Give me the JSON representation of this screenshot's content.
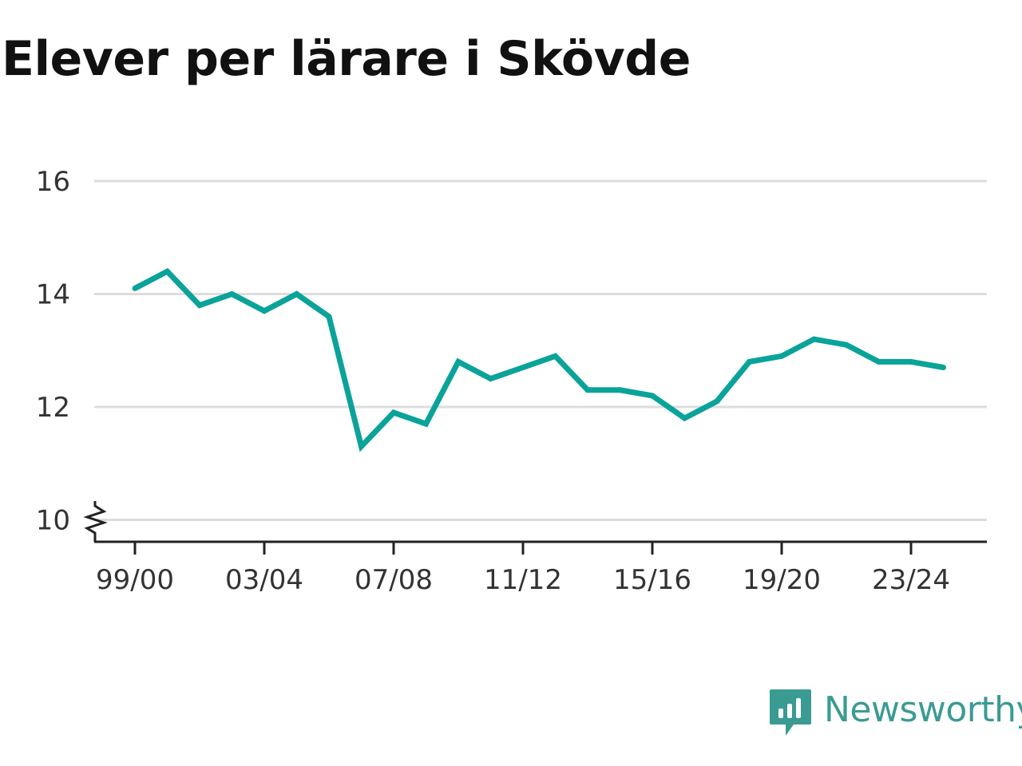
{
  "chart_data": {
    "type": "line",
    "title": "Elever per lärare i Skövde",
    "xlabel": "",
    "ylabel": "",
    "categories": [
      "99/00",
      "00/01",
      "01/02",
      "02/03",
      "03/04",
      "04/05",
      "05/06",
      "06/07",
      "07/08",
      "08/09",
      "09/10",
      "10/11",
      "11/12",
      "12/13",
      "13/14",
      "14/15",
      "15/16",
      "16/17",
      "17/18",
      "18/19",
      "19/20",
      "20/21",
      "21/22",
      "22/23",
      "23/24",
      "24/25"
    ],
    "series": [
      {
        "values": [
          14.1,
          14.4,
          13.8,
          14.0,
          13.7,
          14.0,
          13.6,
          11.3,
          11.9,
          11.7,
          12.8,
          12.5,
          12.7,
          12.9,
          12.3,
          12.3,
          12.2,
          11.8,
          12.1,
          12.8,
          12.9,
          13.2,
          13.1,
          12.8,
          12.8,
          12.7
        ],
        "color": "#0aa399"
      }
    ],
    "x_tick_labels": [
      "99/00",
      "03/04",
      "07/08",
      "11/12",
      "15/16",
      "19/20",
      "23/24"
    ],
    "y_ticks": [
      10,
      12,
      14,
      16
    ],
    "ylim": [
      10,
      16
    ],
    "y_axis_broken": true,
    "grid": "horizontal",
    "legend": "none"
  },
  "branding": {
    "name": "Newsworthy",
    "color": "#3a9b93",
    "icon": "bar-chart-speech-bubble-icon"
  },
  "colors": {
    "gridline": "#dddddd",
    "axis": "#222222",
    "tick_text": "#333333",
    "title": "#111111"
  }
}
